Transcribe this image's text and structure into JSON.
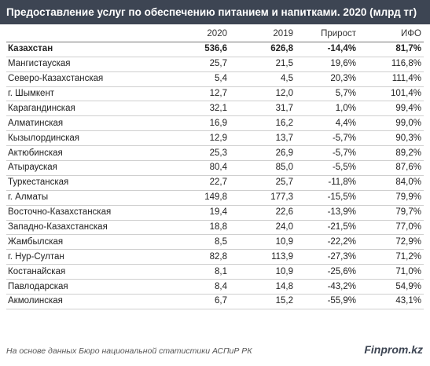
{
  "title": "Предоставление услуг по обеспечению питанием и напитками. 2020 (млрд тг)",
  "columns": [
    "",
    "2020",
    "2019",
    "Прирост",
    "ИФО"
  ],
  "rows": [
    [
      "Казахстан",
      "536,6",
      "626,8",
      "-14,4%",
      "81,7%"
    ],
    [
      "Мангистауская",
      "25,7",
      "21,5",
      "19,6%",
      "116,8%"
    ],
    [
      "Северо-Казахстанская",
      "5,4",
      "4,5",
      "20,3%",
      "111,4%"
    ],
    [
      "г. Шымкент",
      "12,7",
      "12,0",
      "5,7%",
      "101,4%"
    ],
    [
      "Карагандинская",
      "32,1",
      "31,7",
      "1,0%",
      "99,4%"
    ],
    [
      "Алматинская",
      "16,9",
      "16,2",
      "4,4%",
      "99,0%"
    ],
    [
      "Кызылординская",
      "12,9",
      "13,7",
      "-5,7%",
      "90,3%"
    ],
    [
      "Актюбинская",
      "25,3",
      "26,9",
      "-5,7%",
      "89,2%"
    ],
    [
      "Атырауская",
      "80,4",
      "85,0",
      "-5,5%",
      "87,6%"
    ],
    [
      "Туркестанская",
      "22,7",
      "25,7",
      "-11,8%",
      "84,0%"
    ],
    [
      "г. Алматы",
      "149,8",
      "177,3",
      "-15,5%",
      "79,9%"
    ],
    [
      "Восточно-Казахстанская",
      "19,4",
      "22,6",
      "-13,9%",
      "79,7%"
    ],
    [
      "Западно-Казахстанская",
      "18,8",
      "24,0",
      "-21,5%",
      "77,0%"
    ],
    [
      "Жамбылская",
      "8,5",
      "10,9",
      "-22,2%",
      "72,9%"
    ],
    [
      "г. Нур-Султан",
      "82,8",
      "113,9",
      "-27,3%",
      "71,2%"
    ],
    [
      "Костанайская",
      "8,1",
      "10,9",
      "-25,6%",
      "71,0%"
    ],
    [
      "Павлодарская",
      "8,4",
      "14,8",
      "-43,2%",
      "54,9%"
    ],
    [
      "Акмолинская",
      "6,7",
      "15,2",
      "-55,9%",
      "43,1%"
    ]
  ],
  "footer": {
    "note": "На основе данных Бюро национальной статистики АСПиР РК",
    "logo": "Finprom.kz"
  }
}
